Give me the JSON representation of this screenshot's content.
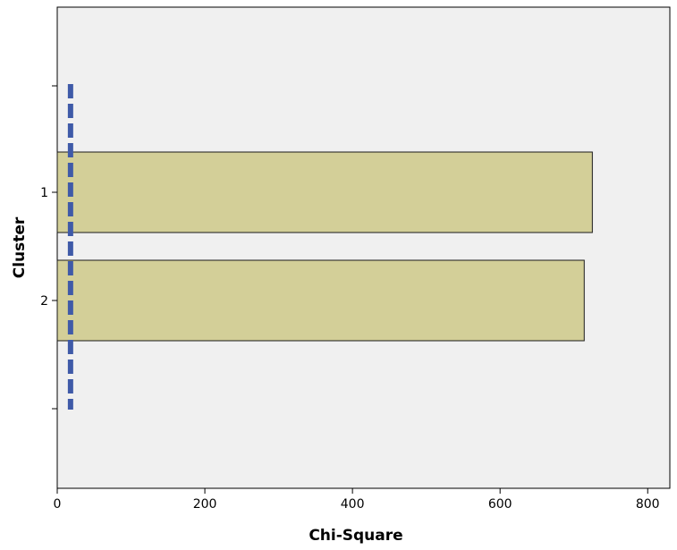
{
  "chart_data": {
    "type": "bar",
    "orientation": "horizontal",
    "title": "",
    "xlabel": "Chi-Square",
    "ylabel": "Cluster",
    "categories": [
      "1",
      "2"
    ],
    "values": [
      725,
      714
    ],
    "xlim": [
      0,
      830
    ],
    "x_ticks": [
      0,
      200,
      400,
      600,
      800
    ],
    "critical_value": 18,
    "grid": false,
    "colors": {
      "bar_fill": "#d3cf98",
      "bar_stroke": "#1a1a1a",
      "plot_background": "#f0f0f0",
      "reference_line": "#3f5aa8"
    }
  }
}
